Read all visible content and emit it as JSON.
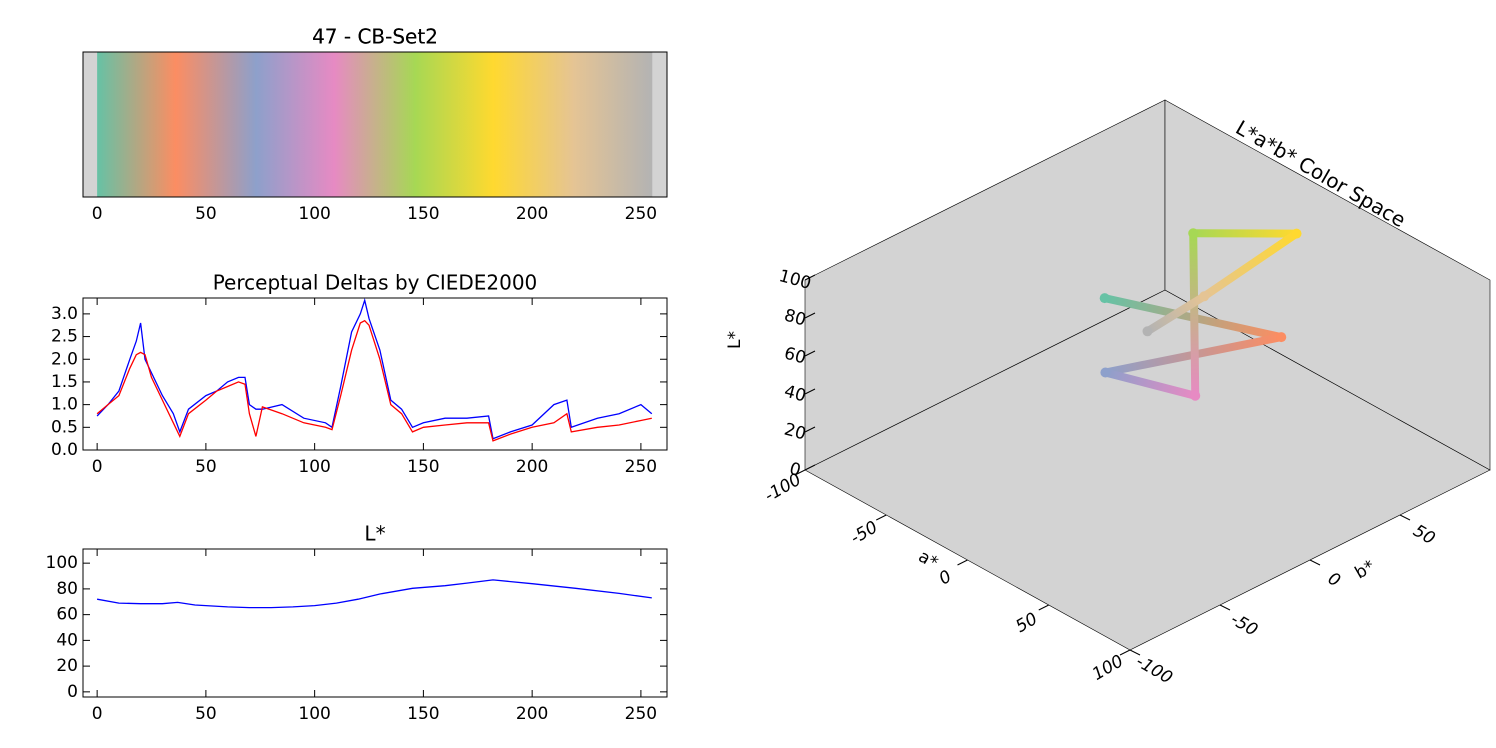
{
  "chart_data": [
    {
      "type": "gradient",
      "title": "47 - CB-Set2",
      "stops": [
        0,
        36,
        73,
        109,
        146,
        182,
        219,
        255
      ],
      "colors": [
        "#66c2a5",
        "#fc8d62",
        "#8da0cb",
        "#e78ac3",
        "#a6d854",
        "#ffd92f",
        "#e5c494",
        "#b3b3b3"
      ],
      "xlim": [
        -6.5,
        262
      ],
      "xticks": [
        0,
        50,
        100,
        150,
        200,
        250
      ]
    },
    {
      "type": "line",
      "title": "Perceptual Deltas by CIEDE2000",
      "x": [
        0,
        5,
        10,
        15,
        18,
        20,
        22,
        25,
        30,
        35,
        38,
        42,
        50,
        55,
        60,
        65,
        68,
        70,
        73,
        76,
        85,
        95,
        105,
        108,
        112,
        117,
        121,
        123,
        125,
        130,
        135,
        140,
        145,
        150,
        160,
        170,
        180,
        182,
        190,
        200,
        210,
        216,
        218,
        230,
        240,
        250,
        255
      ],
      "series": [
        {
          "color": "#0000ff",
          "values": [
            0.75,
            1.0,
            1.3,
            2.0,
            2.4,
            2.8,
            2.0,
            1.7,
            1.2,
            0.8,
            0.4,
            0.9,
            1.2,
            1.3,
            1.5,
            1.6,
            1.6,
            1.0,
            0.9,
            0.9,
            1.0,
            0.7,
            0.6,
            0.5,
            1.4,
            2.6,
            3.0,
            3.3,
            2.9,
            2.2,
            1.1,
            0.9,
            0.5,
            0.6,
            0.7,
            0.7,
            0.75,
            0.25,
            0.4,
            0.55,
            1.0,
            1.1,
            0.5,
            0.7,
            0.8,
            1.0,
            0.8
          ]
        },
        {
          "color": "#ff0000",
          "values": [
            0.8,
            1.0,
            1.2,
            1.8,
            2.1,
            2.15,
            2.1,
            1.6,
            1.1,
            0.6,
            0.3,
            0.8,
            1.1,
            1.3,
            1.4,
            1.5,
            1.45,
            0.8,
            0.3,
            0.95,
            0.8,
            0.6,
            0.5,
            0.45,
            1.2,
            2.2,
            2.8,
            2.85,
            2.75,
            2.0,
            1.0,
            0.8,
            0.4,
            0.5,
            0.55,
            0.6,
            0.6,
            0.2,
            0.35,
            0.5,
            0.6,
            0.8,
            0.4,
            0.5,
            0.55,
            0.65,
            0.7
          ]
        }
      ],
      "xlim": [
        -6.5,
        262
      ],
      "xticks": [
        0,
        50,
        100,
        150,
        200,
        250
      ],
      "ylim": [
        0,
        3.35
      ],
      "yticks": [
        {
          "value": 0,
          "label": "0.0"
        },
        0.5,
        {
          "value": 1,
          "label": "1.0"
        },
        1.5,
        {
          "value": 2,
          "label": "2.0"
        },
        2.5,
        {
          "value": 3,
          "label": "3.0"
        }
      ]
    },
    {
      "type": "line",
      "title": "L*",
      "x": [
        0,
        10,
        20,
        30,
        37,
        45,
        60,
        70,
        80,
        90,
        100,
        110,
        120,
        130,
        145,
        160,
        170,
        182,
        200,
        220,
        240,
        255
      ],
      "series": [
        {
          "color": "#0000ff",
          "values": [
            72,
            69,
            68.5,
            68.5,
            69.5,
            67.5,
            66,
            65.5,
            65.5,
            66,
            67,
            69,
            72,
            76,
            80.5,
            82.5,
            84.5,
            87,
            84,
            80.5,
            76.5,
            73
          ]
        }
      ],
      "xlim": [
        -6.5,
        262
      ],
      "xticks": [
        0,
        50,
        100,
        150,
        200,
        250
      ],
      "ylim": [
        -4,
        111
      ],
      "yticks": [
        0,
        20,
        40,
        60,
        80,
        100
      ]
    },
    {
      "type": "scatter3d",
      "title": "L*a*b* Color Space",
      "xlabel": "a*",
      "ylabel": "b*",
      "zlabel": "L*",
      "a": [
        -33,
        38,
        4,
        46,
        -35,
        2,
        5,
        0
      ],
      "b": [
        6,
        40,
        -27,
        -15,
        57,
        81,
        27,
        0
      ],
      "L": [
        72,
        69,
        66,
        68,
        81,
        87,
        81,
        73
      ],
      "colors": [
        "#66c2a5",
        "#fc8d62",
        "#8da0cb",
        "#e78ac3",
        "#a6d854",
        "#ffd92f",
        "#e5c494",
        "#b3b3b3"
      ],
      "xlim": [
        -100,
        100
      ],
      "ylim": [
        -100,
        100
      ],
      "zlim": [
        0,
        100
      ],
      "xticks": [
        -100,
        -50,
        0,
        50,
        100
      ],
      "yticks": [
        -100,
        -50,
        0,
        50
      ],
      "zticks": [
        0,
        20,
        40,
        60,
        80,
        100
      ]
    }
  ]
}
